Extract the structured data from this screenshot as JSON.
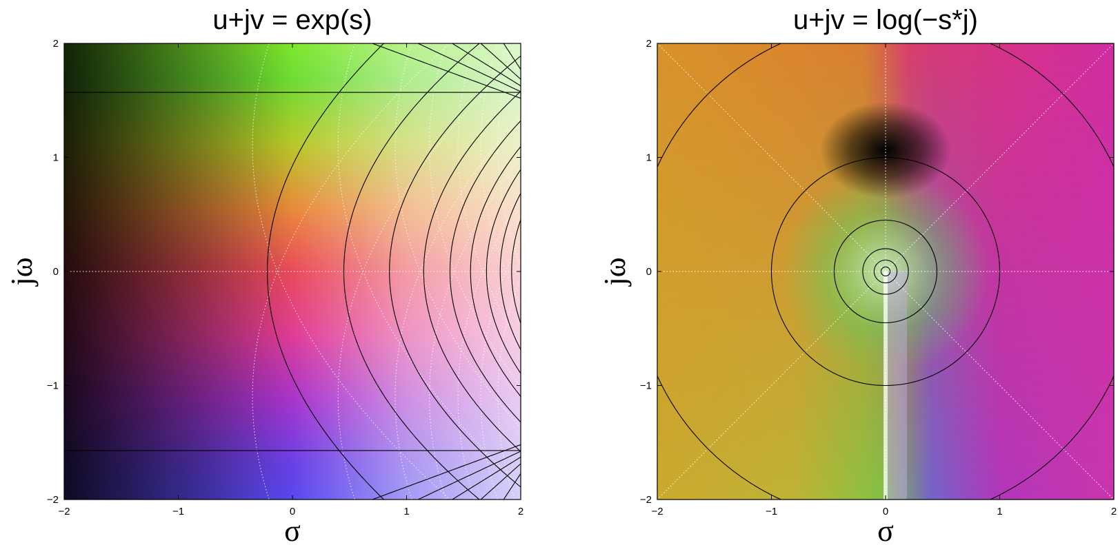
{
  "chart_data": [
    {
      "type": "heatmap",
      "title": "u+jv = exp(s)",
      "xlabel": "σ",
      "ylabel": "jω",
      "xlim": [
        -2,
        2
      ],
      "ylim": [
        -2,
        2
      ],
      "x_ticks": [
        -2,
        -1,
        0,
        1,
        2
      ],
      "y_ticks": [
        -2,
        -1,
        0,
        1,
        2
      ],
      "x_tick_labels": [
        "−2",
        "−1",
        "0",
        "1",
        "2"
      ],
      "y_tick_labels": [
        "−2",
        "−1",
        "0",
        "1",
        "2"
      ],
      "coloring": "domain coloring: hue = phase, brightness = magnitude",
      "overlay": "black contour lines of |u+jv|, dotted white reference lines",
      "grid": "dotted white lines at σ=0 and jω=0"
    },
    {
      "type": "heatmap",
      "title": "u+jv = log(−s*j)",
      "xlabel": "σ",
      "ylabel": "jω",
      "xlim": [
        -2,
        2
      ],
      "ylim": [
        -2,
        2
      ],
      "x_ticks": [
        -2,
        -1,
        0,
        1,
        2
      ],
      "y_ticks": [
        -2,
        -1,
        0,
        1,
        2
      ],
      "x_tick_labels": [
        "−2",
        "−1",
        "0",
        "1",
        "2"
      ],
      "y_tick_labels": [
        "−2",
        "−1",
        "0",
        "1",
        "2"
      ],
      "coloring": "domain coloring: hue = phase, brightness = magnitude",
      "overlay": "concentric black circles of constant |s|, dotted white radial lines",
      "grid": "dotted white lines at σ=0 and jω=0"
    }
  ]
}
